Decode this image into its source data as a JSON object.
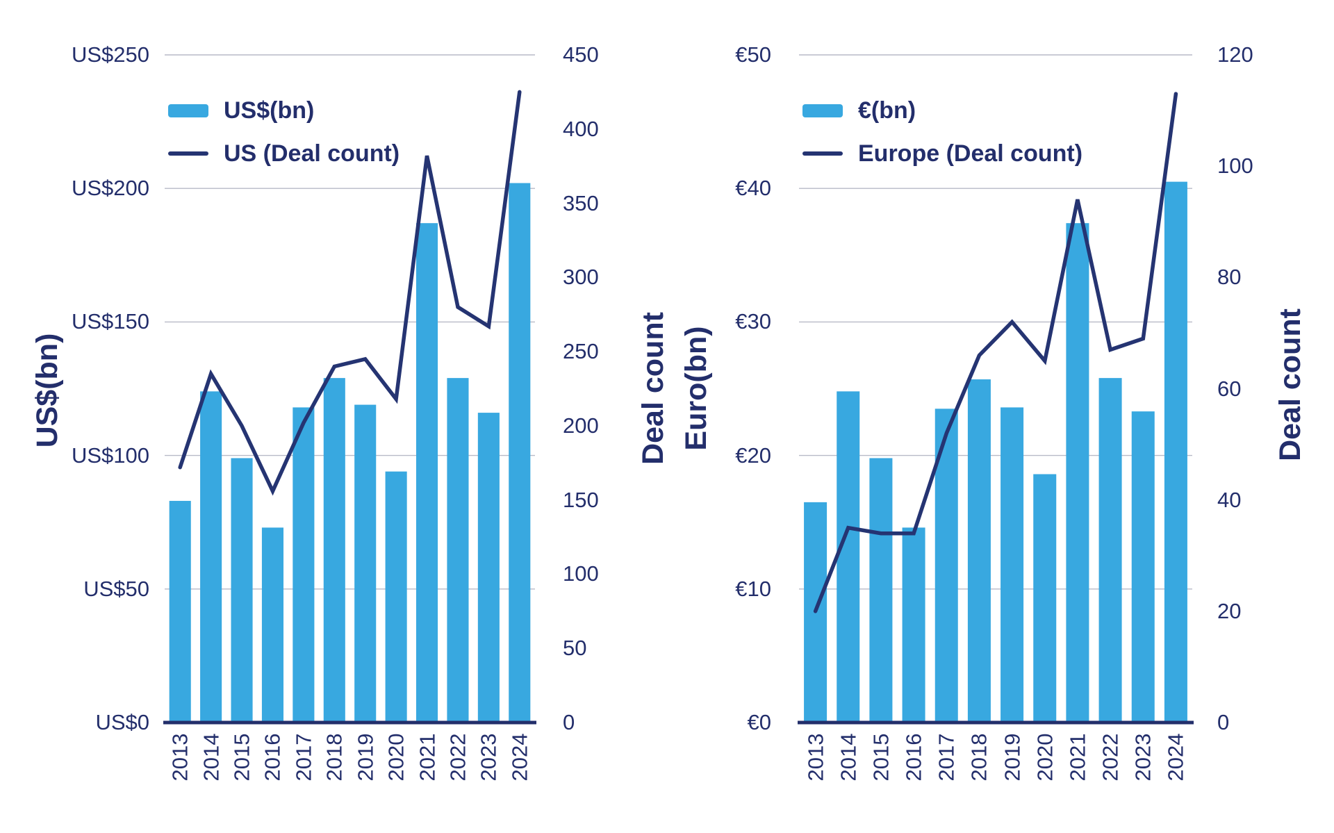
{
  "colors": {
    "background": "#ffffff",
    "bar": "#38a8e0",
    "line": "#253472",
    "text": "#232e6b",
    "grid": "#b7bac7",
    "axis": "#232f6b"
  },
  "chart_data": [
    {
      "id": "us",
      "type": "bar",
      "subtype": "bar+line combo, dual axis",
      "title": "",
      "categories": [
        "2013",
        "2014",
        "2015",
        "2016",
        "2017",
        "2018",
        "2019",
        "2020",
        "2021",
        "2022",
        "2023",
        "2024"
      ],
      "legend": [
        {
          "swatch": "bar-swatch",
          "label": "US$(bn)"
        },
        {
          "swatch": "line-swatch",
          "label": "US (Deal count)"
        }
      ],
      "legend_position": "top-left inside plot",
      "grid": "horizontal gridlines at left-axis ticks only",
      "left_axis": {
        "title": "US$(bn)",
        "range": [
          0,
          250
        ],
        "tick_values": [
          250,
          200,
          150,
          100,
          50,
          0
        ],
        "tick_labels": [
          "US$250",
          "US$200",
          "US$150",
          "US$100",
          "US$50",
          "US$0"
        ]
      },
      "right_axis": {
        "title": "Deal count",
        "range": [
          0,
          450
        ],
        "tick_values": [
          450,
          400,
          350,
          300,
          250,
          200,
          150,
          100,
          50,
          0
        ],
        "tick_labels": [
          "450",
          "400",
          "350",
          "300",
          "250",
          "200",
          "150",
          "100",
          "50",
          "0"
        ]
      },
      "series": [
        {
          "name": "US$(bn)",
          "type": "bar",
          "axis": "left",
          "values": [
            83,
            124,
            99,
            73,
            118,
            129,
            119,
            94,
            187,
            129,
            116,
            202
          ]
        },
        {
          "name": "US (Deal count)",
          "type": "line",
          "axis": "right",
          "values": [
            172,
            235,
            200,
            156,
            202,
            240,
            245,
            218,
            382,
            280,
            267,
            425
          ]
        }
      ]
    },
    {
      "id": "europe",
      "type": "bar",
      "subtype": "bar+line combo, dual axis",
      "title": "",
      "categories": [
        "2013",
        "2014",
        "2015",
        "2016",
        "2017",
        "2018",
        "2019",
        "2020",
        "2021",
        "2022",
        "2023",
        "2024"
      ],
      "legend": [
        {
          "swatch": "bar-swatch",
          "label": "€(bn)"
        },
        {
          "swatch": "line-swatch",
          "label": "Europe (Deal count)"
        }
      ],
      "legend_position": "top-left inside plot",
      "grid": "horizontal gridlines at left-axis ticks only",
      "left_axis": {
        "title": "Euro(bn)",
        "range": [
          0,
          50
        ],
        "tick_values": [
          50,
          40,
          30,
          20,
          10,
          0
        ],
        "tick_labels": [
          "€50",
          "€40",
          "€30",
          "€20",
          "€10",
          "€0"
        ]
      },
      "right_axis": {
        "title": "Deal count",
        "range": [
          0,
          120
        ],
        "tick_values": [
          120,
          100,
          80,
          60,
          40,
          20,
          0
        ],
        "tick_labels": [
          "120",
          "100",
          "80",
          "60",
          "40",
          "20",
          "0"
        ]
      },
      "series": [
        {
          "name": "€(bn)",
          "type": "bar",
          "axis": "left",
          "values": [
            16.5,
            24.8,
            19.8,
            14.6,
            23.5,
            25.7,
            23.6,
            18.6,
            37.4,
            25.8,
            23.3,
            40.5
          ]
        },
        {
          "name": "Europe (Deal count)",
          "type": "line",
          "axis": "right",
          "values": [
            20,
            35,
            34,
            34,
            52,
            66,
            72,
            65,
            94,
            67,
            69,
            113
          ]
        }
      ]
    }
  ]
}
